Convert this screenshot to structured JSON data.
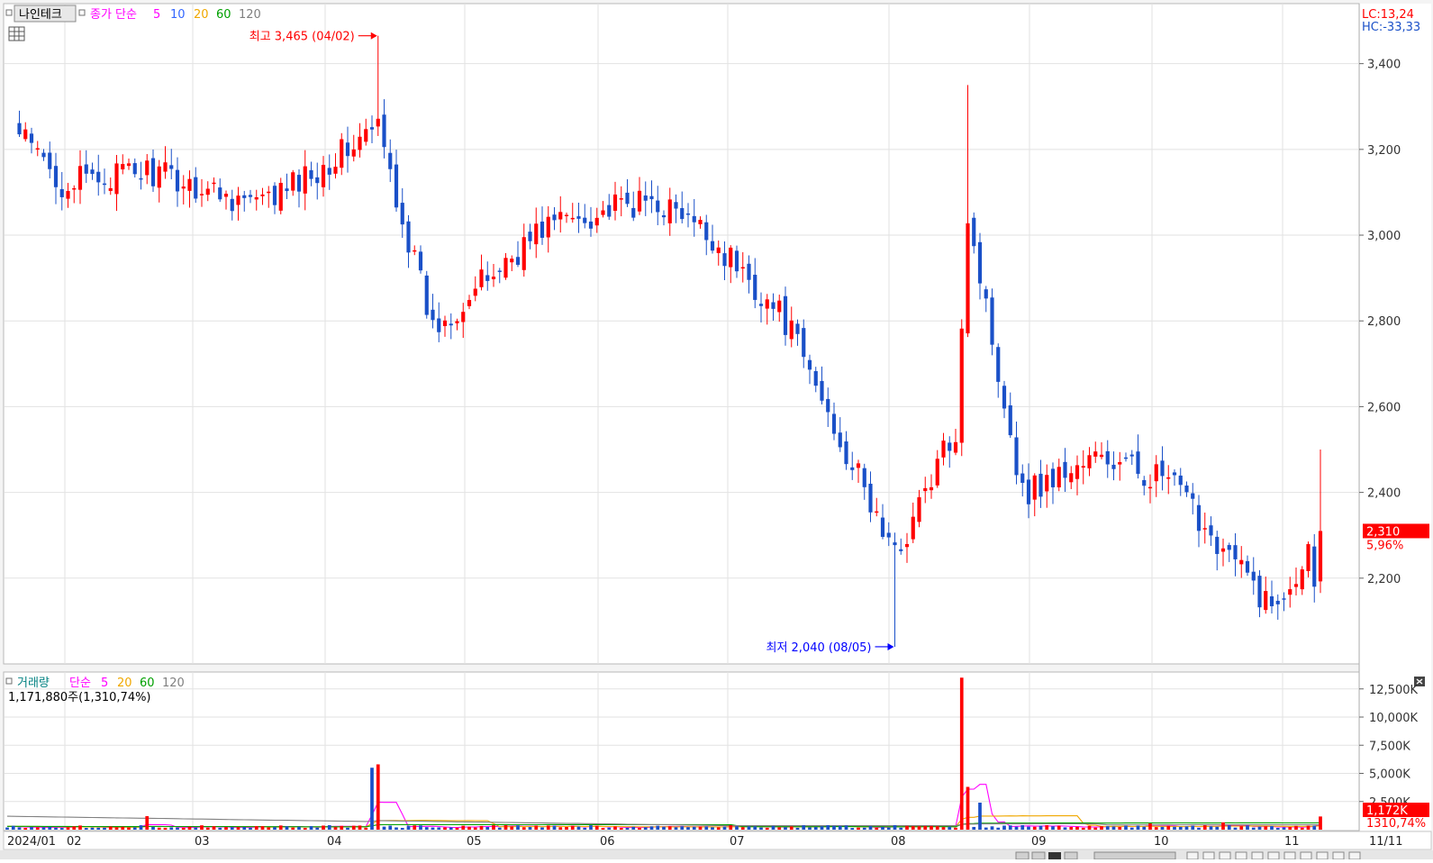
{
  "header": {
    "stock_name": "나인테크",
    "ma_type": "종가 단순",
    "ma_periods": [
      "5",
      "10",
      "20",
      "60",
      "120"
    ],
    "ma_colors": [
      "#ff00ff",
      "#3366ff",
      "#f0a800",
      "#00a000",
      "#808080"
    ]
  },
  "right_badges": {
    "lc": "LC:13,24",
    "hc": "HC:-33,33"
  },
  "price_panel": {
    "high_label": "최고 3,465 (04/02)",
    "low_label": "최저 2,040 (08/05)",
    "current_price": "2,310",
    "current_change": "5,96%",
    "y_ticks": [
      "3,400",
      "3,200",
      "3,000",
      "2,800",
      "2,600",
      "2,400",
      "2,200"
    ],
    "y_tick_values": [
      3400,
      3200,
      3000,
      2800,
      2600,
      2400,
      2200
    ]
  },
  "volume_panel": {
    "title": "거래량",
    "ma_type": "단순",
    "ma_periods": [
      "5",
      "20",
      "60",
      "120"
    ],
    "current_volume": "1,171,880주(1,310,74%)",
    "current_badge": "1,172K",
    "current_pct": "1310,74%",
    "y_ticks": [
      "12,500K",
      "10,000K",
      "7,500K",
      "5,000K",
      "2,500K"
    ],
    "y_tick_values": [
      12500,
      10000,
      7500,
      5000,
      2500
    ]
  },
  "x_axis": {
    "labels": [
      "2024/01",
      "02",
      "03",
      "04",
      "05",
      "06",
      "07",
      "08",
      "09",
      "10",
      "11"
    ],
    "last_date": "11/11"
  },
  "colors": {
    "up": "#ff0000",
    "down": "#1a50c8",
    "grid": "#e2e2e2"
  },
  "chart_data": {
    "type": "candlestick",
    "period": "daily",
    "x_range": [
      "2024/01",
      "11/11"
    ],
    "price_ylim": [
      2000,
      3540
    ],
    "volume_ylim": [
      0,
      14000
    ],
    "highlights": {
      "high": {
        "date": "04/02",
        "value": 3465
      },
      "low": {
        "date": "08/05",
        "value": 2040
      }
    },
    "last_close": 2310,
    "last_change_pct": 5.96,
    "last_volume": 1171880,
    "anchors": [
      {
        "date": "01/02",
        "close": 3250
      },
      {
        "date": "01/15",
        "close": 3120
      },
      {
        "date": "02/05",
        "close": 3150
      },
      {
        "date": "03/04",
        "close": 3070
      },
      {
        "date": "04/02",
        "close": 3250
      },
      {
        "date": "04/16",
        "close": 2780
      },
      {
        "date": "05/13",
        "close": 3030
      },
      {
        "date": "06/10",
        "close": 3080
      },
      {
        "date": "06/25",
        "close": 2990
      },
      {
        "date": "07/11",
        "close": 2800
      },
      {
        "date": "08/05",
        "close": 2250
      },
      {
        "date": "08/20",
        "close": 2550
      },
      {
        "date": "08/23",
        "close": 3050
      },
      {
        "date": "09/06",
        "close": 2400
      },
      {
        "date": "09/24",
        "close": 2480
      },
      {
        "date": "10/10",
        "close": 2430
      },
      {
        "date": "11/04",
        "close": 2130
      },
      {
        "date": "11/11",
        "close": 2310
      }
    ]
  }
}
